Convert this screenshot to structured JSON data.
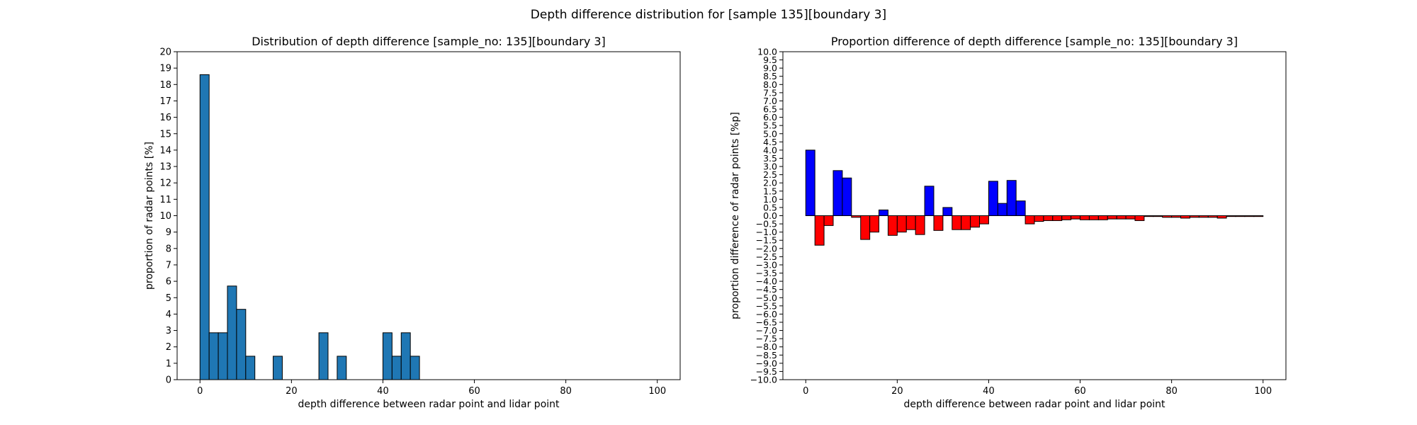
{
  "figure": {
    "suptitle": "Depth difference distribution for [sample 135][boundary 3]"
  },
  "chart_data": [
    {
      "type": "bar",
      "title": "Distribution of depth difference [sample_no: 135][boundary 3]",
      "xlabel": "depth difference between radar point and lidar point",
      "ylabel": "proportion of radar points [%]",
      "xlim": [
        -5,
        105
      ],
      "ylim": [
        0,
        20
      ],
      "xticks": [
        0,
        20,
        40,
        60,
        80,
        100
      ],
      "yticks": [
        0,
        1,
        2,
        3,
        4,
        5,
        6,
        7,
        8,
        9,
        10,
        11,
        12,
        13,
        14,
        15,
        16,
        17,
        18,
        19,
        20
      ],
      "bin_width": 2,
      "bin_starts": [
        0,
        2,
        4,
        6,
        8,
        10,
        12,
        14,
        16,
        18,
        20,
        22,
        24,
        26,
        28,
        30,
        32,
        34,
        36,
        38,
        40,
        42,
        44,
        46
      ],
      "values": [
        18.6,
        2.86,
        2.86,
        5.71,
        4.29,
        1.43,
        0,
        0,
        1.43,
        0,
        0,
        0,
        0,
        2.86,
        0,
        1.43,
        0,
        0,
        0,
        0,
        2.86,
        1.43,
        2.86,
        1.43
      ],
      "colors": {
        "bar": "#1f77b4",
        "edge": "#000000"
      },
      "grid": false
    },
    {
      "type": "bar",
      "title": "Proportion difference of depth difference [sample_no: 135][boundary 3]",
      "xlabel": "depth difference between radar point and lidar point",
      "ylabel": "proportion difference of radar points [%p]",
      "xlim": [
        -5,
        105
      ],
      "ylim": [
        -10,
        10
      ],
      "xticks": [
        0,
        20,
        40,
        60,
        80,
        100
      ],
      "ytick_step": 0.5,
      "bin_width": 2,
      "bin_starts": [
        0,
        2,
        4,
        6,
        8,
        10,
        12,
        14,
        16,
        18,
        20,
        22,
        24,
        26,
        28,
        30,
        32,
        34,
        36,
        38,
        40,
        42,
        44,
        46,
        48,
        50,
        52,
        54,
        56,
        58,
        60,
        62,
        64,
        66,
        68,
        70,
        72,
        74,
        76,
        78,
        80,
        82,
        84,
        86,
        88,
        90,
        92,
        94,
        96,
        98
      ],
      "values": [
        4.0,
        -1.8,
        -0.6,
        2.75,
        2.3,
        -0.1,
        -1.45,
        -1.0,
        0.35,
        -1.2,
        -1.0,
        -0.85,
        -1.15,
        1.8,
        -0.9,
        0.5,
        -0.85,
        -0.85,
        -0.7,
        -0.5,
        2.1,
        0.75,
        2.15,
        0.9,
        -0.5,
        -0.35,
        -0.3,
        -0.3,
        -0.25,
        -0.2,
        -0.25,
        -0.25,
        -0.25,
        -0.2,
        -0.2,
        -0.2,
        -0.3,
        -0.05,
        -0.05,
        -0.1,
        -0.1,
        -0.15,
        -0.1,
        -0.1,
        -0.1,
        -0.15,
        -0.05,
        -0.05,
        -0.05,
        -0.05
      ],
      "colors": {
        "positive": "#0000ff",
        "negative": "#ff0000",
        "edge": "#000000"
      },
      "grid": false
    }
  ]
}
